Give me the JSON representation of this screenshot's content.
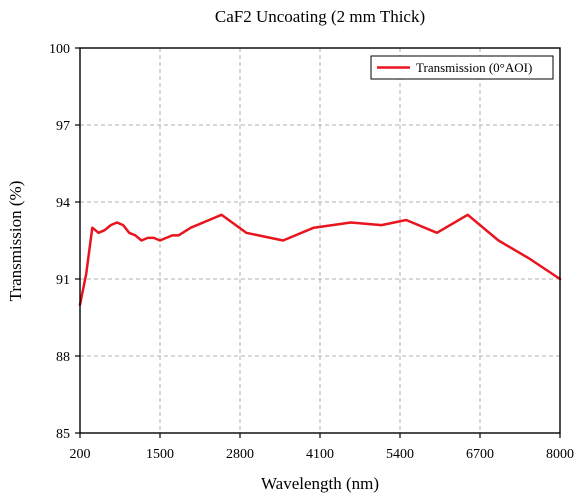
{
  "chart_data": {
    "type": "line",
    "title": "CaF2 Uncoating (2 mm  Thick)",
    "xlabel": "Wavelength (nm)",
    "ylabel": "Transmission (%)",
    "xlim": [
      200,
      8000
    ],
    "ylim": [
      85,
      100
    ],
    "xticks": [
      200,
      1500,
      2800,
      4100,
      5400,
      6700,
      8000
    ],
    "yticks": [
      85,
      88,
      91,
      94,
      97,
      100
    ],
    "grid": true,
    "legend_position": "top-right",
    "series": [
      {
        "name": "Transmission (0°AOI)",
        "color": "#e8141e",
        "x": [
          200,
          300,
          400,
          450,
          500,
          600,
          700,
          800,
          900,
          1000,
          1100,
          1200,
          1300,
          1400,
          1500,
          1600,
          1700,
          1800,
          2000,
          2300,
          2500,
          2900,
          3500,
          4000,
          4600,
          5100,
          5500,
          6000,
          6500,
          7000,
          7500,
          8000
        ],
        "y": [
          90.0,
          91.2,
          93.0,
          92.9,
          92.8,
          92.9,
          93.1,
          93.2,
          93.1,
          92.8,
          92.7,
          92.5,
          92.6,
          92.6,
          92.5,
          92.6,
          92.7,
          92.7,
          93.0,
          93.3,
          93.5,
          92.8,
          92.5,
          93.0,
          93.2,
          93.1,
          93.3,
          92.8,
          93.5,
          92.5,
          91.8,
          91.0
        ]
      }
    ]
  }
}
